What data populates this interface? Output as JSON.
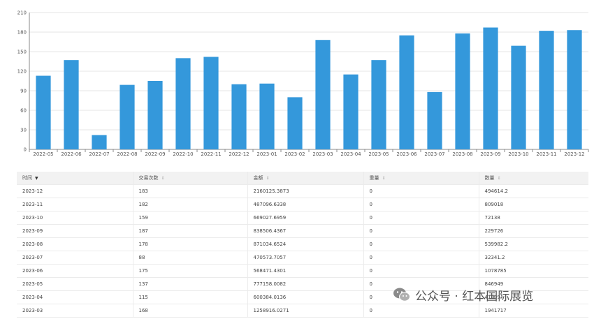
{
  "chart_data": {
    "type": "bar",
    "categories": [
      "2022-05",
      "2022-06",
      "2022-07",
      "2022-08",
      "2022-09",
      "2022-10",
      "2022-11",
      "2022-12",
      "2023-01",
      "2023-02",
      "2023-03",
      "2023-04",
      "2023-05",
      "2023-06",
      "2023-07",
      "2023-08",
      "2023-09",
      "2023-10",
      "2023-11",
      "2023-12"
    ],
    "values": [
      113,
      137,
      22,
      99,
      105,
      140,
      142,
      100,
      101,
      80,
      168,
      115,
      137,
      175,
      88,
      178,
      187,
      159,
      182,
      183
    ],
    "ylim": [
      0,
      210
    ],
    "yticks": [
      0,
      30,
      60,
      90,
      120,
      150,
      180,
      210
    ],
    "grid": true,
    "bar_color": "#3498db"
  },
  "table": {
    "columns": [
      {
        "label": "时间",
        "sort": "▼"
      },
      {
        "label": "交易次数",
        "sort": "⇕"
      },
      {
        "label": "金额",
        "sort": "⇕"
      },
      {
        "label": "重量",
        "sort": "⇕"
      },
      {
        "label": "数量",
        "sort": "⇕"
      }
    ],
    "rows": [
      [
        "2023-12",
        "183",
        "2160125.3873",
        "0",
        "494614.2"
      ],
      [
        "2023-11",
        "182",
        "487096.6338",
        "0",
        "809018"
      ],
      [
        "2023-10",
        "159",
        "669027.6959",
        "0",
        "72138"
      ],
      [
        "2023-09",
        "187",
        "838506.4367",
        "0",
        "229726"
      ],
      [
        "2023-08",
        "178",
        "871034.6524",
        "0",
        "539982.2"
      ],
      [
        "2023-07",
        "88",
        "470573.7057",
        "0",
        "32341.2"
      ],
      [
        "2023-06",
        "175",
        "568471.4301",
        "0",
        "1078785"
      ],
      [
        "2023-05",
        "137",
        "777158.0082",
        "0",
        "846949"
      ],
      [
        "2023-04",
        "115",
        "600384.0136",
        "0",
        "41899"
      ],
      [
        "2023-03",
        "168",
        "1258916.0271",
        "0",
        "1941717"
      ]
    ]
  },
  "watermark": {
    "text": "公众号 · 红本国际展览",
    "icon": "wechat-icon"
  }
}
